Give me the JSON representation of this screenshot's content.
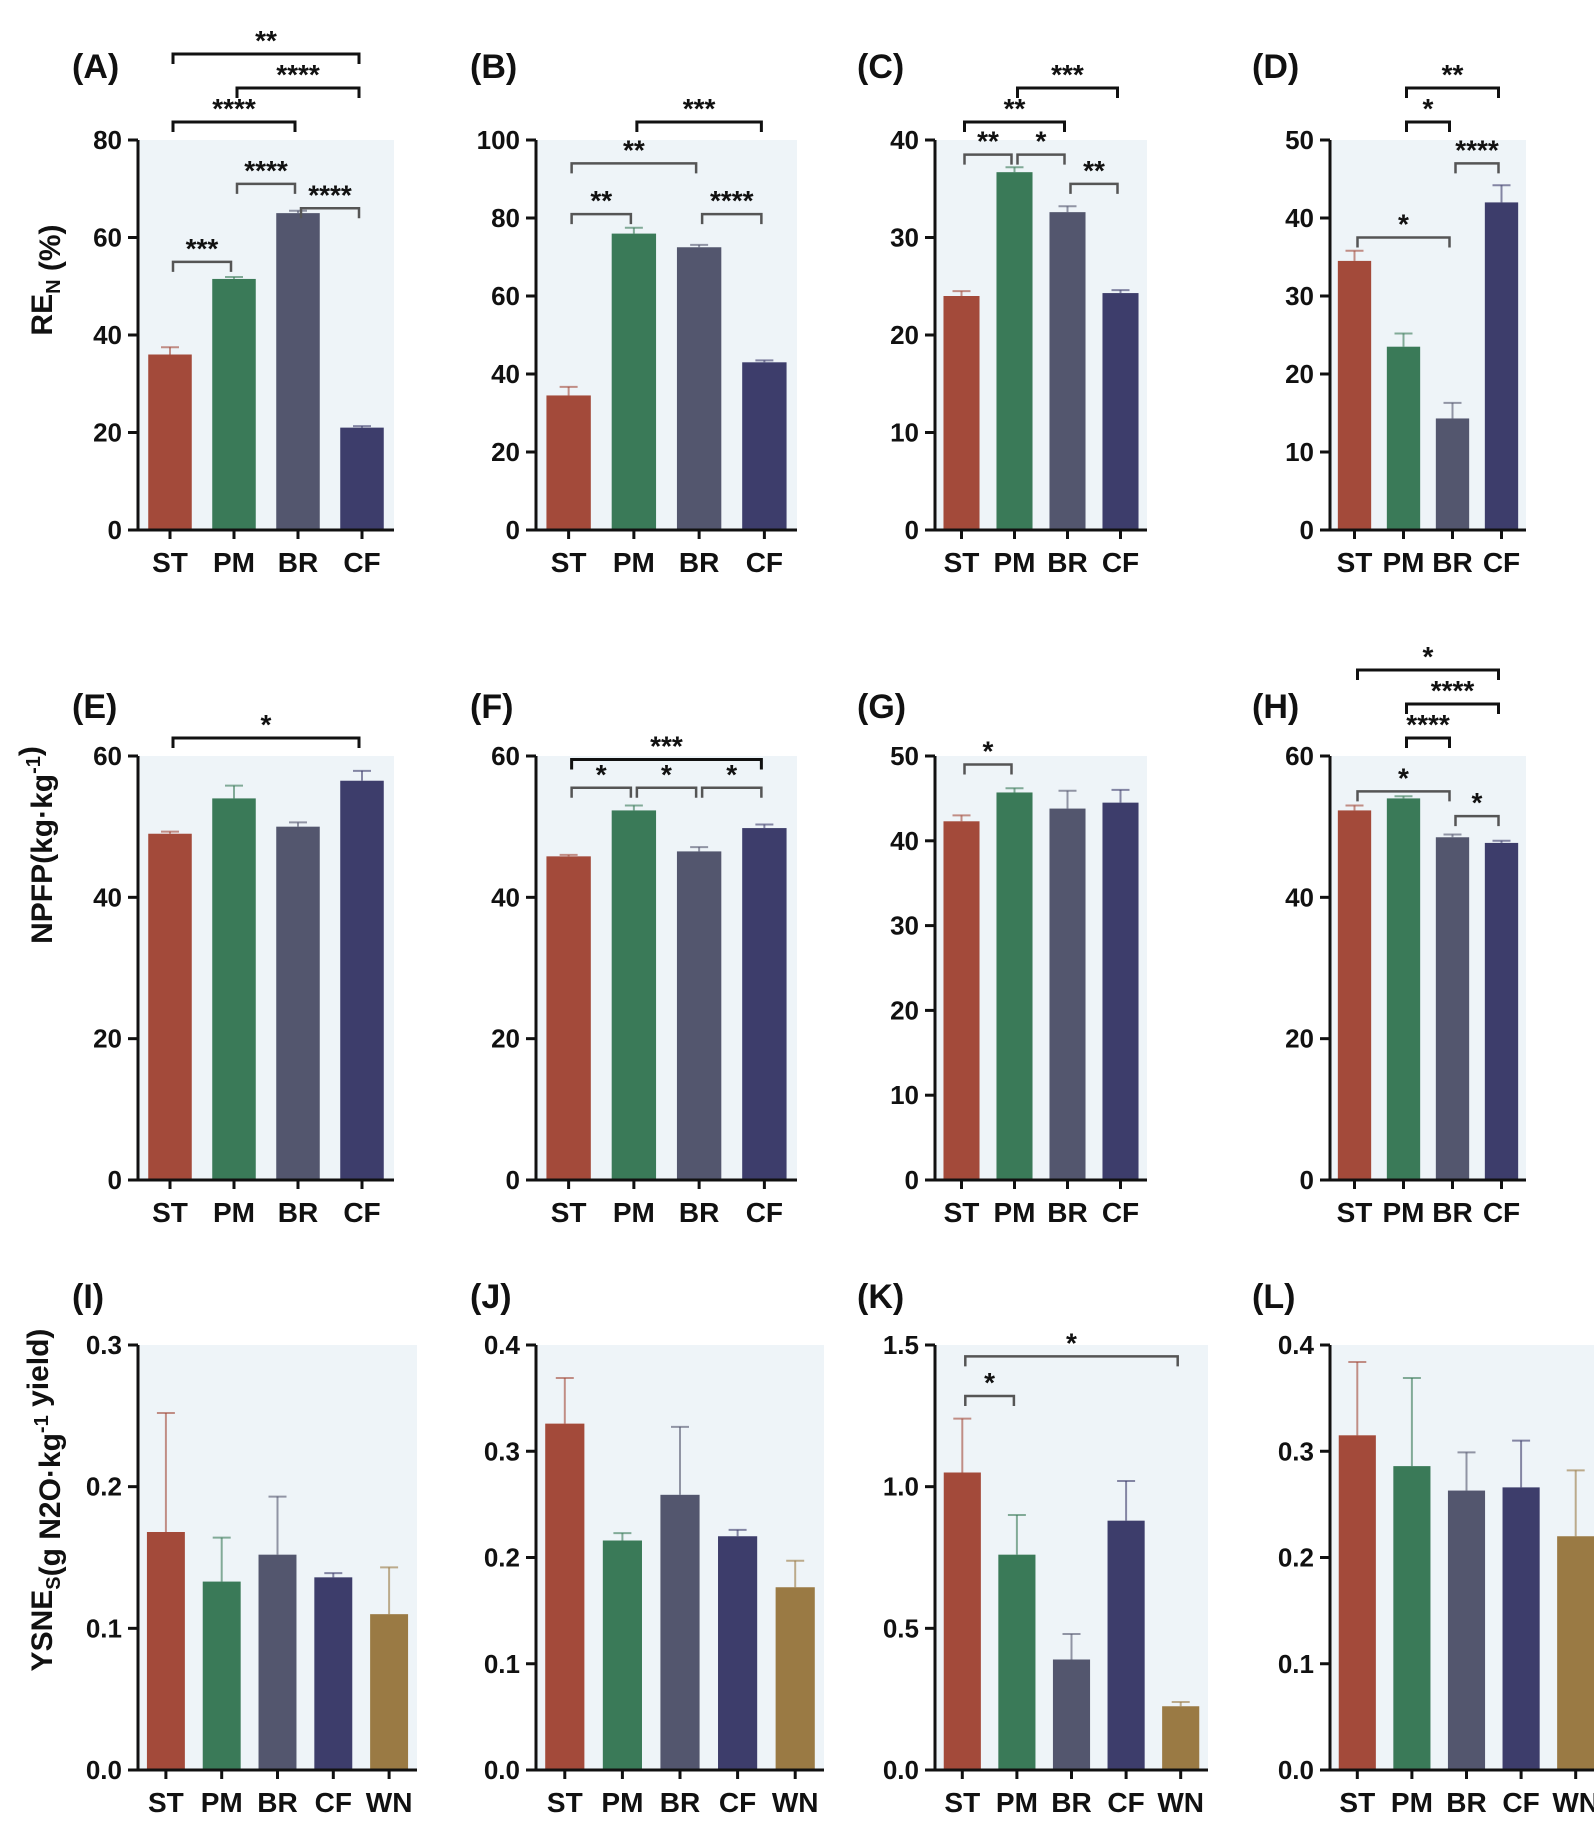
{
  "colors": {
    "ST": "#a34a3a",
    "PM": "#3a7a58",
    "BR": "#53566e",
    "CF": "#3d3d6b",
    "WN": "#9a7a44",
    "panel_bg": "#eef4f8",
    "bracket_black": "#111111",
    "bracket_gray": "#555555"
  },
  "row_ylabels": [
    {
      "main": "RE",
      "sub": "N",
      "suffix": " (%)"
    },
    {
      "main": "NPFP(kg·kg",
      "sup": "-1",
      "suffix": ")"
    },
    {
      "main": "YSNE",
      "sub": "S",
      "mid": "(g N2O·kg",
      "sup": "-1",
      "suffix": " yield)"
    }
  ],
  "chart_data": [
    {
      "panel": "(A)",
      "type": "bar",
      "categories": [
        "ST",
        "PM",
        "BR",
        "CF"
      ],
      "values": [
        36,
        51.5,
        65,
        21
      ],
      "errors": [
        1.5,
        0.4,
        0.5,
        0.3
      ],
      "ylim": [
        0,
        80
      ],
      "yticks": [
        "0",
        "20",
        "40",
        "60",
        "80"
      ],
      "significance": [
        {
          "from": 0,
          "to": 3,
          "label": "**",
          "style": "black",
          "level": 3
        },
        {
          "from": 1,
          "to": 3,
          "label": "****",
          "style": "black",
          "level": 2
        },
        {
          "from": 0,
          "to": 2,
          "label": "****",
          "style": "black",
          "level": 1
        },
        {
          "from": 1,
          "to": 2,
          "label": "****",
          "style": "gray",
          "level": 0,
          "y": 71
        },
        {
          "from": 2,
          "to": 3,
          "label": "****",
          "style": "gray",
          "level": 0,
          "y": 66
        },
        {
          "from": 0,
          "to": 1,
          "label": "***",
          "style": "gray",
          "level": 0,
          "y": 55
        }
      ]
    },
    {
      "panel": "(B)",
      "type": "bar",
      "categories": [
        "ST",
        "PM",
        "BR",
        "CF"
      ],
      "values": [
        34.5,
        76,
        72.5,
        43
      ],
      "errors": [
        2.2,
        1.5,
        0.6,
        0.5
      ],
      "ylim": [
        0,
        100
      ],
      "yticks": [
        "0",
        "20",
        "40",
        "60",
        "80",
        "100"
      ],
      "significance": [
        {
          "from": 1,
          "to": 3,
          "label": "***",
          "style": "black",
          "level": 1
        },
        {
          "from": 0,
          "to": 2,
          "label": "**",
          "style": "gray",
          "level": 0,
          "y": 94
        },
        {
          "from": 0,
          "to": 1,
          "label": "**",
          "style": "gray",
          "level": 0,
          "y": 81
        },
        {
          "from": 2,
          "to": 3,
          "label": "****",
          "style": "gray",
          "level": 0,
          "y": 81
        }
      ]
    },
    {
      "panel": "(C)",
      "type": "bar",
      "categories": [
        "ST",
        "PM",
        "BR",
        "CF"
      ],
      "values": [
        24,
        36.7,
        32.6,
        24.3
      ],
      "errors": [
        0.5,
        0.5,
        0.6,
        0.3
      ],
      "ylim": [
        0,
        40
      ],
      "yticks": [
        "0",
        "10",
        "20",
        "30",
        "40"
      ],
      "significance": [
        {
          "from": 1,
          "to": 3,
          "label": "***",
          "style": "black",
          "level": 2
        },
        {
          "from": 0,
          "to": 2,
          "label": "**",
          "style": "black",
          "level": 1
        },
        {
          "from": 0,
          "to": 1,
          "label": "**",
          "style": "gray",
          "level": 0,
          "y": 38.5
        },
        {
          "from": 1,
          "to": 2,
          "label": "*",
          "style": "gray",
          "level": 0,
          "y": 38.5
        },
        {
          "from": 2,
          "to": 3,
          "label": "**",
          "style": "gray",
          "level": 0,
          "y": 35.5
        }
      ]
    },
    {
      "panel": "(D)",
      "type": "bar",
      "categories": [
        "ST",
        "PM",
        "BR",
        "CF"
      ],
      "values": [
        34.5,
        23.5,
        14.3,
        42
      ],
      "errors": [
        1.3,
        1.7,
        2,
        2.2
      ],
      "ylim": [
        0,
        50
      ],
      "yticks": [
        "0",
        "10",
        "20",
        "30",
        "40",
        "50"
      ],
      "significance": [
        {
          "from": 1,
          "to": 3,
          "label": "**",
          "style": "black",
          "level": 2
        },
        {
          "from": 1,
          "to": 2,
          "label": "*",
          "style": "black",
          "level": 1
        },
        {
          "from": 2,
          "to": 3,
          "label": "****",
          "style": "gray",
          "level": 0,
          "y": 47
        },
        {
          "from": 0,
          "to": 2,
          "label": "*",
          "style": "gray",
          "level": 0,
          "y": 37.5
        }
      ]
    },
    {
      "panel": "(E)",
      "type": "bar",
      "categories": [
        "ST",
        "PM",
        "BR",
        "CF"
      ],
      "values": [
        49,
        54,
        50,
        56.5
      ],
      "errors": [
        0.3,
        1.8,
        0.6,
        1.4
      ],
      "ylim": [
        0,
        60
      ],
      "yticks": [
        "0",
        "20",
        "40",
        "60"
      ],
      "significance": [
        {
          "from": 0,
          "to": 3,
          "label": "*",
          "style": "black",
          "level": 1
        }
      ]
    },
    {
      "panel": "(F)",
      "type": "bar",
      "categories": [
        "ST",
        "PM",
        "BR",
        "CF"
      ],
      "values": [
        45.8,
        52.3,
        46.5,
        49.8
      ],
      "errors": [
        0.2,
        0.7,
        0.6,
        0.5
      ],
      "ylim": [
        0,
        60
      ],
      "yticks": [
        "0",
        "20",
        "40",
        "60"
      ],
      "significance": [
        {
          "from": 0,
          "to": 3,
          "label": "***",
          "style": "black",
          "level": 0,
          "y": 59.5
        },
        {
          "from": 0,
          "to": 1,
          "label": "*",
          "style": "gray",
          "level": 0,
          "y": 55.5
        },
        {
          "from": 1,
          "to": 2,
          "label": "*",
          "style": "gray",
          "level": 0,
          "y": 55.5
        },
        {
          "from": 2,
          "to": 3,
          "label": "*",
          "style": "gray",
          "level": 0,
          "y": 55.5
        }
      ]
    },
    {
      "panel": "(G)",
      "type": "bar",
      "categories": [
        "ST",
        "PM",
        "BR",
        "CF"
      ],
      "values": [
        42.3,
        45.7,
        43.8,
        44.5
      ],
      "errors": [
        0.7,
        0.5,
        2.1,
        1.5
      ],
      "ylim": [
        0,
        50
      ],
      "yticks": [
        "0",
        "10",
        "20",
        "30",
        "40",
        "50"
      ],
      "significance": [
        {
          "from": 0,
          "to": 1,
          "label": "*",
          "style": "gray",
          "level": 0,
          "y": 49
        }
      ]
    },
    {
      "panel": "(H)",
      "type": "bar",
      "categories": [
        "ST",
        "PM",
        "BR",
        "CF"
      ],
      "values": [
        52.3,
        54,
        48.5,
        47.7
      ],
      "errors": [
        0.7,
        0.3,
        0.4,
        0.3
      ],
      "ylim": [
        0,
        60
      ],
      "yticks": [
        "0",
        "20",
        "40",
        "60"
      ],
      "significance": [
        {
          "from": 0,
          "to": 3,
          "label": "*",
          "style": "black",
          "level": 3
        },
        {
          "from": 1,
          "to": 3,
          "label": "****",
          "style": "black",
          "level": 2
        },
        {
          "from": 1,
          "to": 2,
          "label": "****",
          "style": "black",
          "level": 1
        },
        {
          "from": 0,
          "to": 2,
          "label": "*",
          "style": "gray",
          "level": 0,
          "y": 55
        },
        {
          "from": 2,
          "to": 3,
          "label": "*",
          "style": "gray",
          "level": 0,
          "y": 51.5
        }
      ]
    },
    {
      "panel": "(I)",
      "type": "bar",
      "categories": [
        "ST",
        "PM",
        "BR",
        "CF",
        "WN"
      ],
      "values": [
        0.168,
        0.133,
        0.152,
        0.136,
        0.11
      ],
      "errors": [
        0.084,
        0.031,
        0.041,
        0.003,
        0.033
      ],
      "ylim": [
        0,
        0.3
      ],
      "yticks": [
        "0.0",
        "0.1",
        "0.2",
        "0.3"
      ],
      "significance": []
    },
    {
      "panel": "(J)",
      "type": "bar",
      "categories": [
        "ST",
        "PM",
        "BR",
        "CF",
        "WN"
      ],
      "values": [
        0.326,
        0.216,
        0.259,
        0.22,
        0.172
      ],
      "errors": [
        0.043,
        0.007,
        0.064,
        0.006,
        0.025
      ],
      "ylim": [
        0,
        0.4
      ],
      "yticks": [
        "0.0",
        "0.1",
        "0.2",
        "0.3",
        "0.4"
      ],
      "significance": []
    },
    {
      "panel": "(K)",
      "type": "bar",
      "categories": [
        "ST",
        "PM",
        "BR",
        "CF",
        "WN"
      ],
      "values": [
        1.05,
        0.76,
        0.39,
        0.88,
        0.225
      ],
      "errors": [
        0.19,
        0.14,
        0.09,
        0.14,
        0.015
      ],
      "ylim": [
        0,
        1.5
      ],
      "yticks": [
        "0.0",
        "0.5",
        "1.0",
        "1.5"
      ],
      "significance": [
        {
          "from": 0,
          "to": 4,
          "label": "*",
          "style": "gray",
          "level": 0,
          "y": 1.46
        },
        {
          "from": 0,
          "to": 1,
          "label": "*",
          "style": "gray",
          "level": 0,
          "y": 1.32
        }
      ]
    },
    {
      "panel": "(L)",
      "type": "bar",
      "categories": [
        "ST",
        "PM",
        "BR",
        "CF",
        "WN"
      ],
      "values": [
        0.315,
        0.286,
        0.263,
        0.266,
        0.22
      ],
      "errors": [
        0.069,
        0.083,
        0.036,
        0.044,
        0.062
      ],
      "ylim": [
        0,
        0.4
      ],
      "yticks": [
        "0.0",
        "0.1",
        "0.2",
        "0.3",
        "0.4"
      ],
      "significance": []
    }
  ]
}
